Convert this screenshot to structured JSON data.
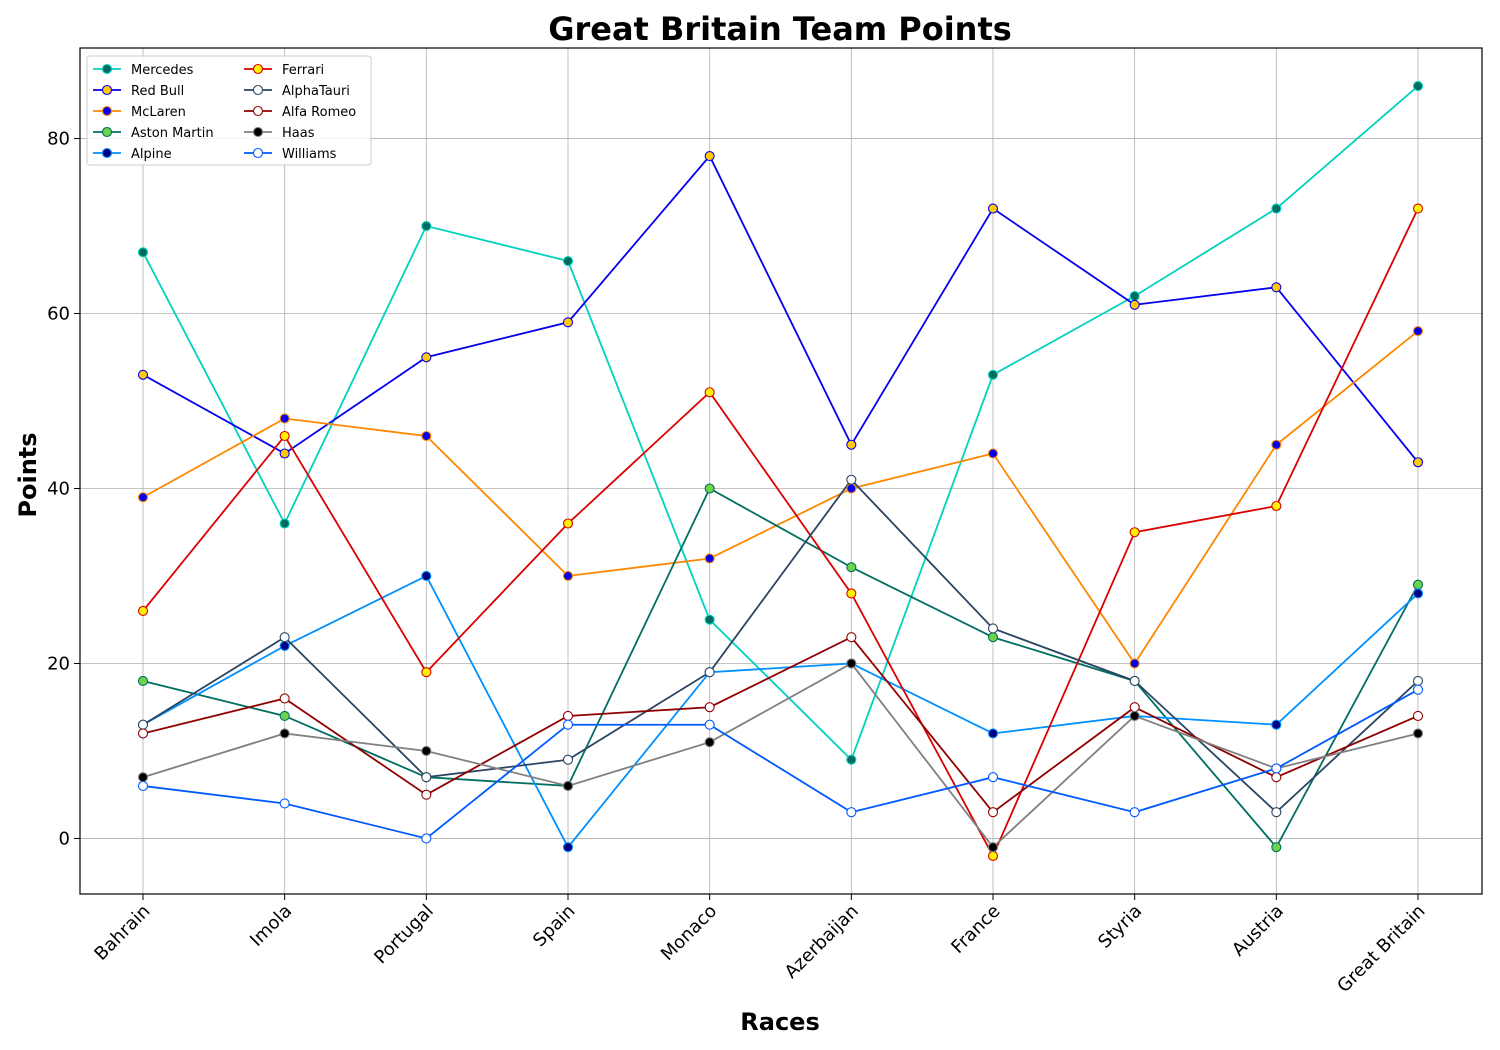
{
  "chart_data": {
    "type": "line",
    "title": "Great Britain Team Points",
    "xlabel": "Races",
    "ylabel": "Points",
    "ylim": [
      -6.35,
      90.35
    ],
    "yticks": [
      0,
      20,
      40,
      60,
      80
    ],
    "grid": true,
    "legend_position": "top-left",
    "categories": [
      "Bahrain",
      "Imola",
      "Portugal",
      "Spain",
      "Monaco",
      "Azerbaijan",
      "France",
      "Styria",
      "Austria",
      "Great Britain"
    ],
    "series": [
      {
        "name": "Mercedes",
        "color": "#00D2BE",
        "marker_fill": "#006b5e",
        "values": [
          67,
          36,
          70,
          66,
          25,
          9,
          53,
          62,
          72,
          86
        ]
      },
      {
        "name": "Red Bull",
        "color": "#0600EF",
        "marker_fill": "#FFC906",
        "values": [
          53,
          44,
          55,
          59,
          78,
          45,
          72,
          61,
          63,
          43
        ]
      },
      {
        "name": "McLaren",
        "color": "#FF8700",
        "marker_fill": "#0600EF",
        "values": [
          39,
          48,
          46,
          30,
          32,
          40,
          44,
          20,
          45,
          58
        ]
      },
      {
        "name": "Aston Martin",
        "color": "#006F62",
        "marker_fill": "#6CD34B",
        "values": [
          18,
          14,
          7,
          6,
          40,
          31,
          23,
          18,
          -1,
          29
        ]
      },
      {
        "name": "Alpine",
        "color": "#0090FF",
        "marker_fill": "#000080",
        "values": [
          13,
          22,
          30,
          -1,
          19,
          20,
          12,
          14,
          13,
          28
        ]
      },
      {
        "name": "Ferrari",
        "color": "#DC0000",
        "marker_fill": "#FFF200",
        "values": [
          26,
          46,
          19,
          36,
          51,
          28,
          -2,
          35,
          38,
          72
        ]
      },
      {
        "name": "AlphaTauri",
        "color": "#2B4562",
        "marker_fill": "#FFFFFF",
        "values": [
          13,
          23,
          7,
          9,
          19,
          41,
          24,
          18,
          3,
          18
        ]
      },
      {
        "name": "Alfa Romeo",
        "color": "#900000",
        "marker_fill": "#FFFFFF",
        "values": [
          12,
          16,
          5,
          14,
          15,
          23,
          3,
          15,
          7,
          14
        ]
      },
      {
        "name": "Haas",
        "color": "#808080",
        "marker_fill": "#000000",
        "values": [
          7,
          12,
          10,
          6,
          11,
          20,
          -1,
          14,
          8,
          12
        ]
      },
      {
        "name": "Williams",
        "color": "#005AFF",
        "marker_fill": "#FFFFFF",
        "values": [
          6,
          4,
          0,
          13,
          13,
          3,
          7,
          3,
          8,
          17
        ]
      }
    ]
  }
}
